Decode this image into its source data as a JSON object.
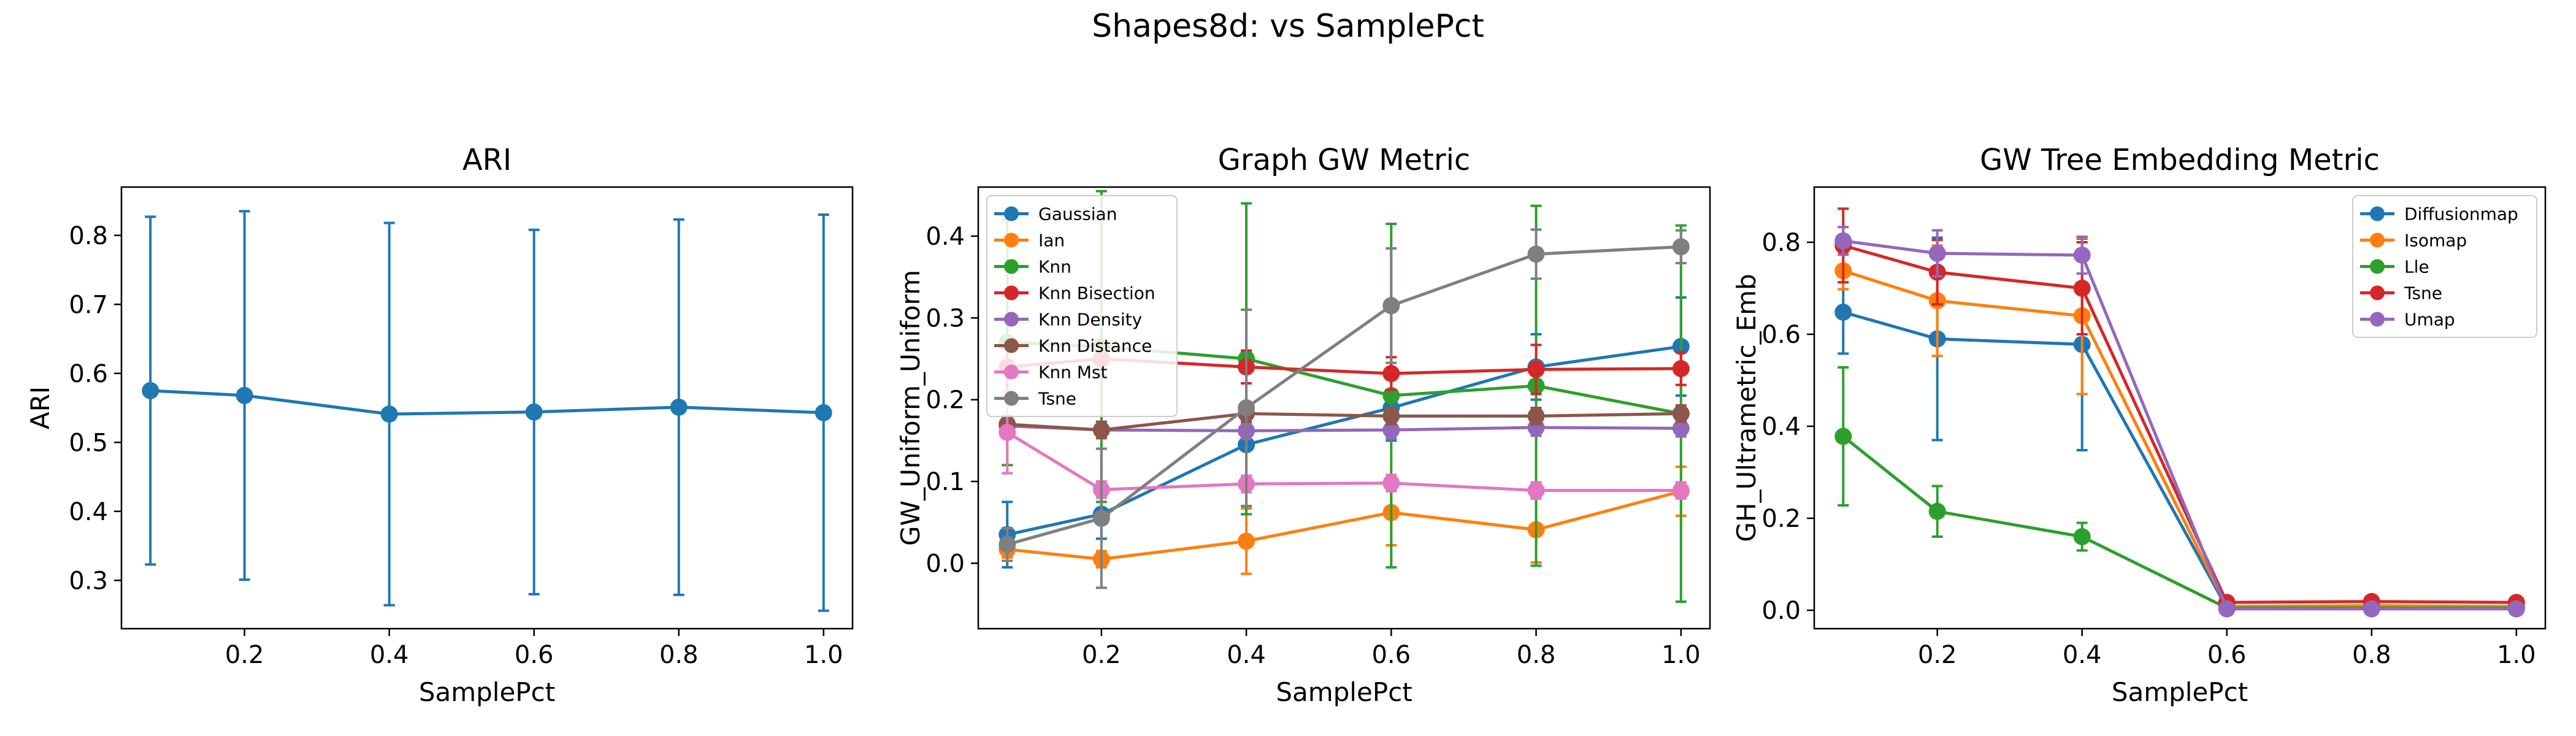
{
  "figure": {
    "suptitle": "Shapes8d: vs SamplePct"
  },
  "chart_data": [
    {
      "type": "line",
      "title": "ARI",
      "xlabel": "SamplePct",
      "ylabel": "ARI",
      "xlim": [
        0.03,
        1.04
      ],
      "ylim": [
        0.23,
        0.87
      ],
      "xticks": [
        0.2,
        0.4,
        0.6,
        0.8,
        1.0
      ],
      "xtick_labels": [
        "0.2",
        "0.4",
        "0.6",
        "0.8",
        "1.0"
      ],
      "yticks": [
        0.3,
        0.4,
        0.5,
        0.6,
        0.7,
        0.8
      ],
      "ytick_labels": [
        "0.3",
        "0.4",
        "0.5",
        "0.6",
        "0.7",
        "0.8"
      ],
      "x": [
        0.07,
        0.2,
        0.4,
        0.6,
        0.8,
        1.0
      ],
      "legend": null,
      "series": [
        {
          "color": "#1f77b4",
          "values": [
            0.575,
            0.568,
            0.541,
            0.544,
            0.551,
            0.543
          ],
          "err": [
            0.252,
            0.267,
            0.277,
            0.264,
            0.272,
            0.287
          ]
        }
      ]
    },
    {
      "type": "line",
      "title": "Graph GW Metric",
      "xlabel": "SamplePct",
      "ylabel": "GW_Uniform_Uniform",
      "xlim": [
        0.03,
        1.04
      ],
      "ylim": [
        -0.08,
        0.46
      ],
      "xticks": [
        0.2,
        0.4,
        0.6,
        0.8,
        1.0
      ],
      "xtick_labels": [
        "0.2",
        "0.4",
        "0.6",
        "0.8",
        "1.0"
      ],
      "yticks": [
        0.0,
        0.1,
        0.2,
        0.3,
        0.4
      ],
      "ytick_labels": [
        "0.0",
        "0.1",
        "0.2",
        "0.3",
        "0.4"
      ],
      "x": [
        0.07,
        0.2,
        0.4,
        0.6,
        0.8,
        1.0
      ],
      "legend": "upper left",
      "series": [
        {
          "name": "Gaussian",
          "color": "#1f77b4",
          "values": [
            0.035,
            0.06,
            0.145,
            0.19,
            0.24,
            0.265
          ],
          "err": [
            0.04,
            0.03,
            0.04,
            0.04,
            0.04,
            0.06
          ]
        },
        {
          "name": "Ian",
          "color": "#ff7f0e",
          "values": [
            0.017,
            0.005,
            0.027,
            0.062,
            0.041,
            0.088
          ],
          "err": [
            0.01,
            0.01,
            0.04,
            0.04,
            0.04,
            0.03
          ]
        },
        {
          "name": "Knn",
          "color": "#2ca02c",
          "values": [
            0.27,
            0.265,
            0.25,
            0.205,
            0.217,
            0.183
          ],
          "err": [
            0.15,
            0.19,
            0.19,
            0.21,
            0.22,
            0.23
          ]
        },
        {
          "name": "Knn Bisection",
          "color": "#d62728",
          "values": [
            0.24,
            0.25,
            0.24,
            0.232,
            0.237,
            0.238
          ],
          "err": [
            0.03,
            0.02,
            0.02,
            0.02,
            0.03,
            0.02
          ]
        },
        {
          "name": "Knn Density",
          "color": "#9467bd",
          "values": [
            0.168,
            0.163,
            0.162,
            0.163,
            0.166,
            0.165
          ],
          "err": [
            0.01,
            0.01,
            0.01,
            0.01,
            0.01,
            0.01
          ]
        },
        {
          "name": "Knn Distance",
          "color": "#8c564b",
          "values": [
            0.17,
            0.163,
            0.183,
            0.18,
            0.18,
            0.183
          ],
          "err": [
            0.01,
            0.01,
            0.01,
            0.01,
            0.01,
            0.01
          ]
        },
        {
          "name": "Knn Mst",
          "color": "#e377c2",
          "values": [
            0.16,
            0.09,
            0.097,
            0.098,
            0.089,
            0.089
          ],
          "err": [
            0.05,
            0.01,
            0.01,
            0.01,
            0.01,
            0.01
          ]
        },
        {
          "name": "Tsne",
          "color": "#7f7f7f",
          "values": [
            0.023,
            0.055,
            0.19,
            0.315,
            0.378,
            0.387
          ],
          "err": [
            0.02,
            0.085,
            0.12,
            0.07,
            0.03,
            0.02
          ]
        }
      ]
    },
    {
      "type": "line",
      "title": "GW Tree Embedding Metric",
      "xlabel": "SamplePct",
      "ylabel": "GH_Ultrametric_Emb",
      "xlim": [
        0.03,
        1.04
      ],
      "ylim": [
        -0.04,
        0.92
      ],
      "xticks": [
        0.2,
        0.4,
        0.6,
        0.8,
        1.0
      ],
      "xtick_labels": [
        "0.2",
        "0.4",
        "0.6",
        "0.8",
        "1.0"
      ],
      "yticks": [
        0.0,
        0.2,
        0.4,
        0.6,
        0.8
      ],
      "ytick_labels": [
        "0.0",
        "0.2",
        "0.4",
        "0.6",
        "0.8"
      ],
      "x": [
        0.07,
        0.2,
        0.4,
        0.6,
        0.8,
        1.0
      ],
      "legend": "upper right",
      "series": [
        {
          "name": "Diffusionmap",
          "color": "#1f77b4",
          "values": [
            0.648,
            0.59,
            0.578,
            0.005,
            0.005,
            0.005
          ],
          "err": [
            0.09,
            0.22,
            0.23,
            0.005,
            0.005,
            0.005
          ]
        },
        {
          "name": "Isomap",
          "color": "#ff7f0e",
          "values": [
            0.738,
            0.673,
            0.64,
            0.008,
            0.01,
            0.008
          ],
          "err": [
            0.04,
            0.12,
            0.17,
            0.005,
            0.005,
            0.005
          ]
        },
        {
          "name": "Lle",
          "color": "#2ca02c",
          "values": [
            0.378,
            0.215,
            0.16,
            0.005,
            0.005,
            0.005
          ],
          "err": [
            0.15,
            0.055,
            0.03,
            0.005,
            0.005,
            0.005
          ]
        },
        {
          "name": "Tsne",
          "color": "#d62728",
          "values": [
            0.793,
            0.735,
            0.7,
            0.017,
            0.019,
            0.017
          ],
          "err": [
            0.08,
            0.07,
            0.1,
            0.005,
            0.005,
            0.005
          ]
        },
        {
          "name": "Umap",
          "color": "#9467bd",
          "values": [
            0.803,
            0.776,
            0.772,
            0.003,
            0.003,
            0.003
          ],
          "err": [
            0.03,
            0.05,
            0.04,
            0.003,
            0.003,
            0.003
          ]
        }
      ]
    }
  ]
}
